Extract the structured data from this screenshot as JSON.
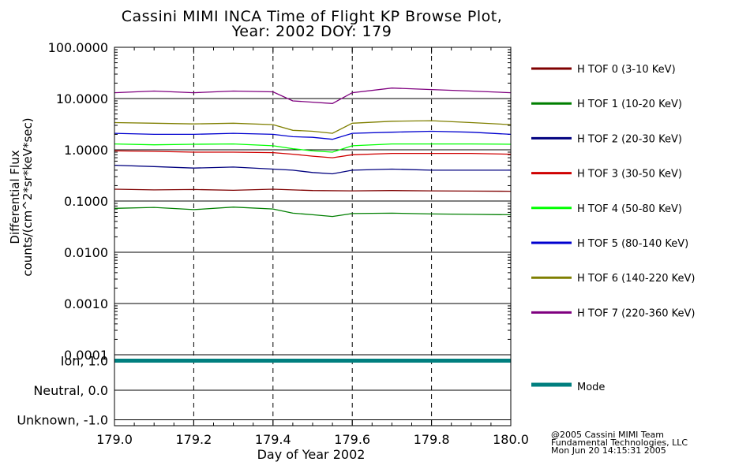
{
  "title_line1": "Cassini MIMI INCA Time of Flight KP Browse Plot,",
  "title_line2": "Year: 2002 DOY: 179",
  "credits": [
    "@2005 Cassini MIMI Team",
    "Fundamental Technologies, LLC",
    "Mon Jun 20 14:15:31 2005"
  ],
  "chart_data": [
    {
      "type": "line",
      "panel": "flux",
      "ylabel_line1": "Differential Flux",
      "ylabel_line2": "counts/(cm^2*sr*keV*sec)",
      "y_scale": "log",
      "ylim": [
        0.0001,
        100
      ],
      "y_ticks": [
        100,
        10,
        1,
        0.1,
        0.01,
        0.001,
        0.0001
      ],
      "y_tick_labels": [
        "100.0000",
        "10.0000",
        "1.0000",
        "0.1000",
        "0.0100",
        "0.0010",
        "0.0001"
      ],
      "xlim": [
        179.0,
        180.0
      ],
      "x_gridlines": [
        179.2,
        179.4,
        179.6,
        179.8
      ],
      "grid": "horizontal solid at decades, vertical dashed",
      "legend_position": "right",
      "series": [
        {
          "name": "H TOF 0 (3-10 KeV)",
          "color": "#7f0000",
          "points": [
            [
              179.0,
              0.17
            ],
            [
              179.1,
              0.165
            ],
            [
              179.2,
              0.168
            ],
            [
              179.3,
              0.162
            ],
            [
              179.4,
              0.17
            ],
            [
              179.5,
              0.16
            ],
            [
              179.6,
              0.158
            ],
            [
              179.7,
              0.16
            ],
            [
              179.8,
              0.158
            ],
            [
              179.9,
              0.156
            ],
            [
              180.0,
              0.155
            ]
          ]
        },
        {
          "name": "H TOF 1 (10-20 KeV)",
          "color": "#007f00",
          "points": [
            [
              179.0,
              0.072
            ],
            [
              179.1,
              0.075
            ],
            [
              179.2,
              0.068
            ],
            [
              179.3,
              0.076
            ],
            [
              179.4,
              0.07
            ],
            [
              179.45,
              0.058
            ],
            [
              179.5,
              0.054
            ],
            [
              179.55,
              0.05
            ],
            [
              179.6,
              0.057
            ],
            [
              179.7,
              0.058
            ],
            [
              179.8,
              0.056
            ],
            [
              179.9,
              0.055
            ],
            [
              180.0,
              0.054
            ]
          ]
        },
        {
          "name": "H TOF 2 (20-30 KeV)",
          "color": "#00007f",
          "points": [
            [
              179.0,
              0.5
            ],
            [
              179.1,
              0.47
            ],
            [
              179.2,
              0.44
            ],
            [
              179.3,
              0.46
            ],
            [
              179.4,
              0.42
            ],
            [
              179.45,
              0.4
            ],
            [
              179.5,
              0.36
            ],
            [
              179.55,
              0.34
            ],
            [
              179.6,
              0.4
            ],
            [
              179.7,
              0.42
            ],
            [
              179.8,
              0.4
            ],
            [
              179.9,
              0.4
            ],
            [
              180.0,
              0.4
            ]
          ]
        },
        {
          "name": "H TOF 3 (30-50 KeV)",
          "color": "#cf0000",
          "points": [
            [
              179.0,
              0.95
            ],
            [
              179.1,
              0.93
            ],
            [
              179.2,
              0.9
            ],
            [
              179.3,
              0.9
            ],
            [
              179.4,
              0.88
            ],
            [
              179.45,
              0.82
            ],
            [
              179.5,
              0.75
            ],
            [
              179.55,
              0.7
            ],
            [
              179.6,
              0.8
            ],
            [
              179.7,
              0.85
            ],
            [
              179.8,
              0.85
            ],
            [
              179.9,
              0.85
            ],
            [
              180.0,
              0.82
            ]
          ]
        },
        {
          "name": "H TOF 4 (50-80 KeV)",
          "color": "#00ff00",
          "points": [
            [
              179.0,
              1.3
            ],
            [
              179.1,
              1.25
            ],
            [
              179.2,
              1.28
            ],
            [
              179.3,
              1.3
            ],
            [
              179.4,
              1.2
            ],
            [
              179.45,
              1.05
            ],
            [
              179.5,
              0.95
            ],
            [
              179.55,
              0.9
            ],
            [
              179.6,
              1.2
            ],
            [
              179.7,
              1.3
            ],
            [
              179.8,
              1.3
            ],
            [
              179.9,
              1.3
            ],
            [
              180.0,
              1.28
            ]
          ]
        },
        {
          "name": "H TOF 5 (80-140 KeV)",
          "color": "#0000cf",
          "points": [
            [
              179.0,
              2.1
            ],
            [
              179.1,
              2.0
            ],
            [
              179.2,
              2.0
            ],
            [
              179.3,
              2.1
            ],
            [
              179.4,
              2.0
            ],
            [
              179.45,
              1.8
            ],
            [
              179.5,
              1.75
            ],
            [
              179.55,
              1.6
            ],
            [
              179.6,
              2.1
            ],
            [
              179.7,
              2.2
            ],
            [
              179.8,
              2.3
            ],
            [
              179.9,
              2.2
            ],
            [
              180.0,
              2.0
            ]
          ]
        },
        {
          "name": "H TOF 6 (140-220 KeV)",
          "color": "#7f7f00",
          "points": [
            [
              179.0,
              3.4
            ],
            [
              179.1,
              3.3
            ],
            [
              179.2,
              3.2
            ],
            [
              179.3,
              3.3
            ],
            [
              179.4,
              3.1
            ],
            [
              179.45,
              2.4
            ],
            [
              179.5,
              2.3
            ],
            [
              179.55,
              2.1
            ],
            [
              179.6,
              3.3
            ],
            [
              179.7,
              3.6
            ],
            [
              179.8,
              3.7
            ],
            [
              179.9,
              3.4
            ],
            [
              180.0,
              3.1
            ]
          ]
        },
        {
          "name": "H TOF 7 (220-360 KeV)",
          "color": "#7f007f",
          "points": [
            [
              179.0,
              13
            ],
            [
              179.1,
              14
            ],
            [
              179.2,
              13
            ],
            [
              179.3,
              14
            ],
            [
              179.4,
              13.5
            ],
            [
              179.45,
              9
            ],
            [
              179.5,
              8.5
            ],
            [
              179.55,
              8
            ],
            [
              179.6,
              13
            ],
            [
              179.7,
              16
            ],
            [
              179.8,
              15
            ],
            [
              179.9,
              14
            ],
            [
              180.0,
              13
            ]
          ]
        }
      ]
    },
    {
      "type": "line",
      "panel": "mode",
      "ylim": [
        -1.2,
        1.2
      ],
      "y_ticks": [
        1.0,
        0.0,
        -1.0
      ],
      "y_tick_labels": [
        "Ion, 1.0",
        "Neutral, 0.0",
        "Unknown, -1.0"
      ],
      "xlim": [
        179.0,
        180.0
      ],
      "x_ticks": [
        179.0,
        179.2,
        179.4,
        179.6,
        179.8,
        180.0
      ],
      "x_tick_labels": [
        "179.0",
        "179.2",
        "179.4",
        "179.6",
        "179.8",
        "180.0"
      ],
      "xlabel": "Day of Year 2002",
      "series": [
        {
          "name": "Mode",
          "color": "#007f7f",
          "points": [
            [
              179.0,
              1.0
            ],
            [
              180.0,
              1.0
            ]
          ]
        }
      ]
    }
  ]
}
